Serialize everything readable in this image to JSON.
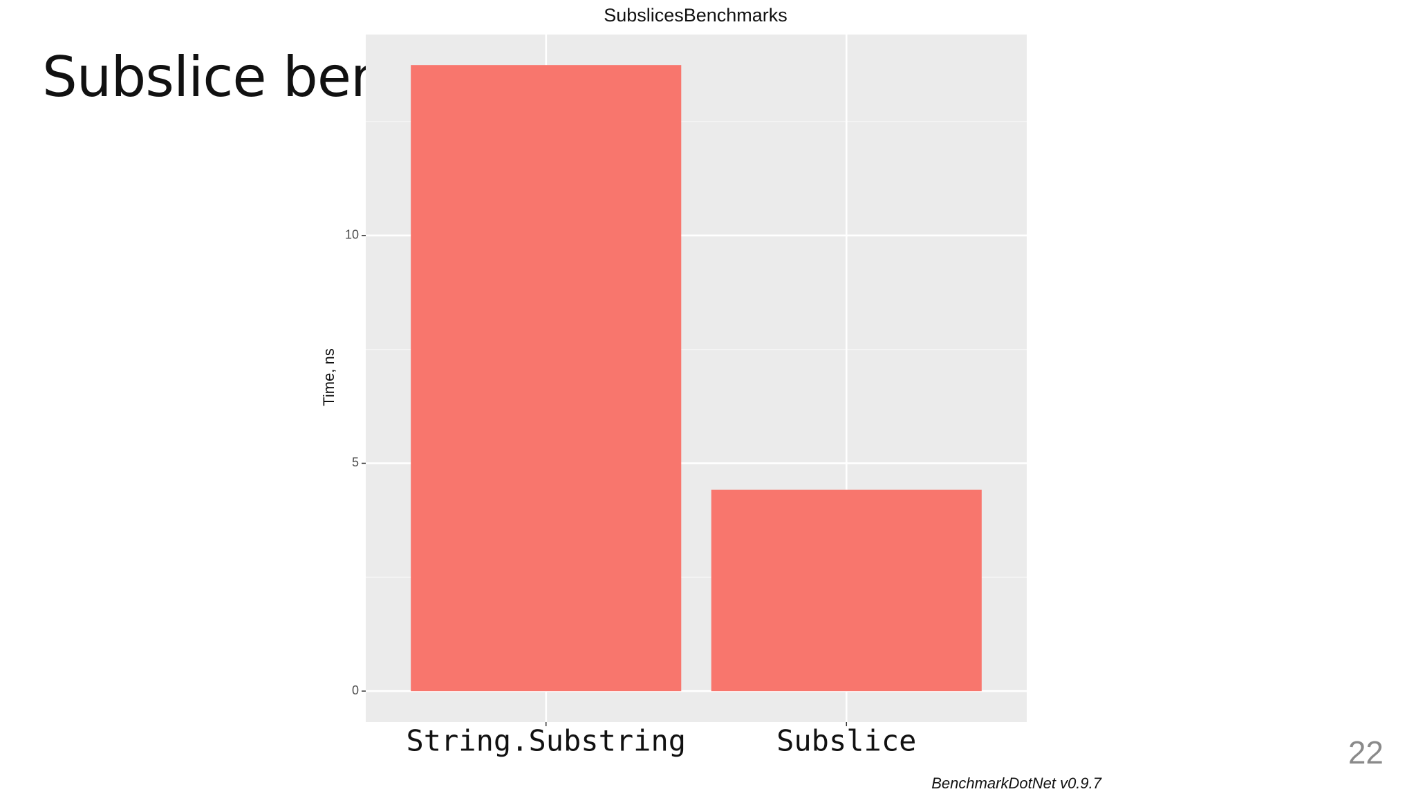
{
  "slide_title": "Subslice benchmarks",
  "page_number": "22",
  "chart_data": {
    "type": "bar",
    "title": "SubslicesBenchmarks",
    "y_label": "Time, ns",
    "footer": "BenchmarkDotNet v0.9.7",
    "categories": [
      "String.Substring",
      "Subslice"
    ],
    "values": [
      13.74,
      4.42
    ],
    "color": "#f8766d",
    "ylim": [
      -0.68,
      14.41
    ],
    "yticks": [
      0,
      5,
      10
    ],
    "y_minor_ticks": [
      2.5,
      7.5,
      12.5
    ],
    "grid": true
  }
}
